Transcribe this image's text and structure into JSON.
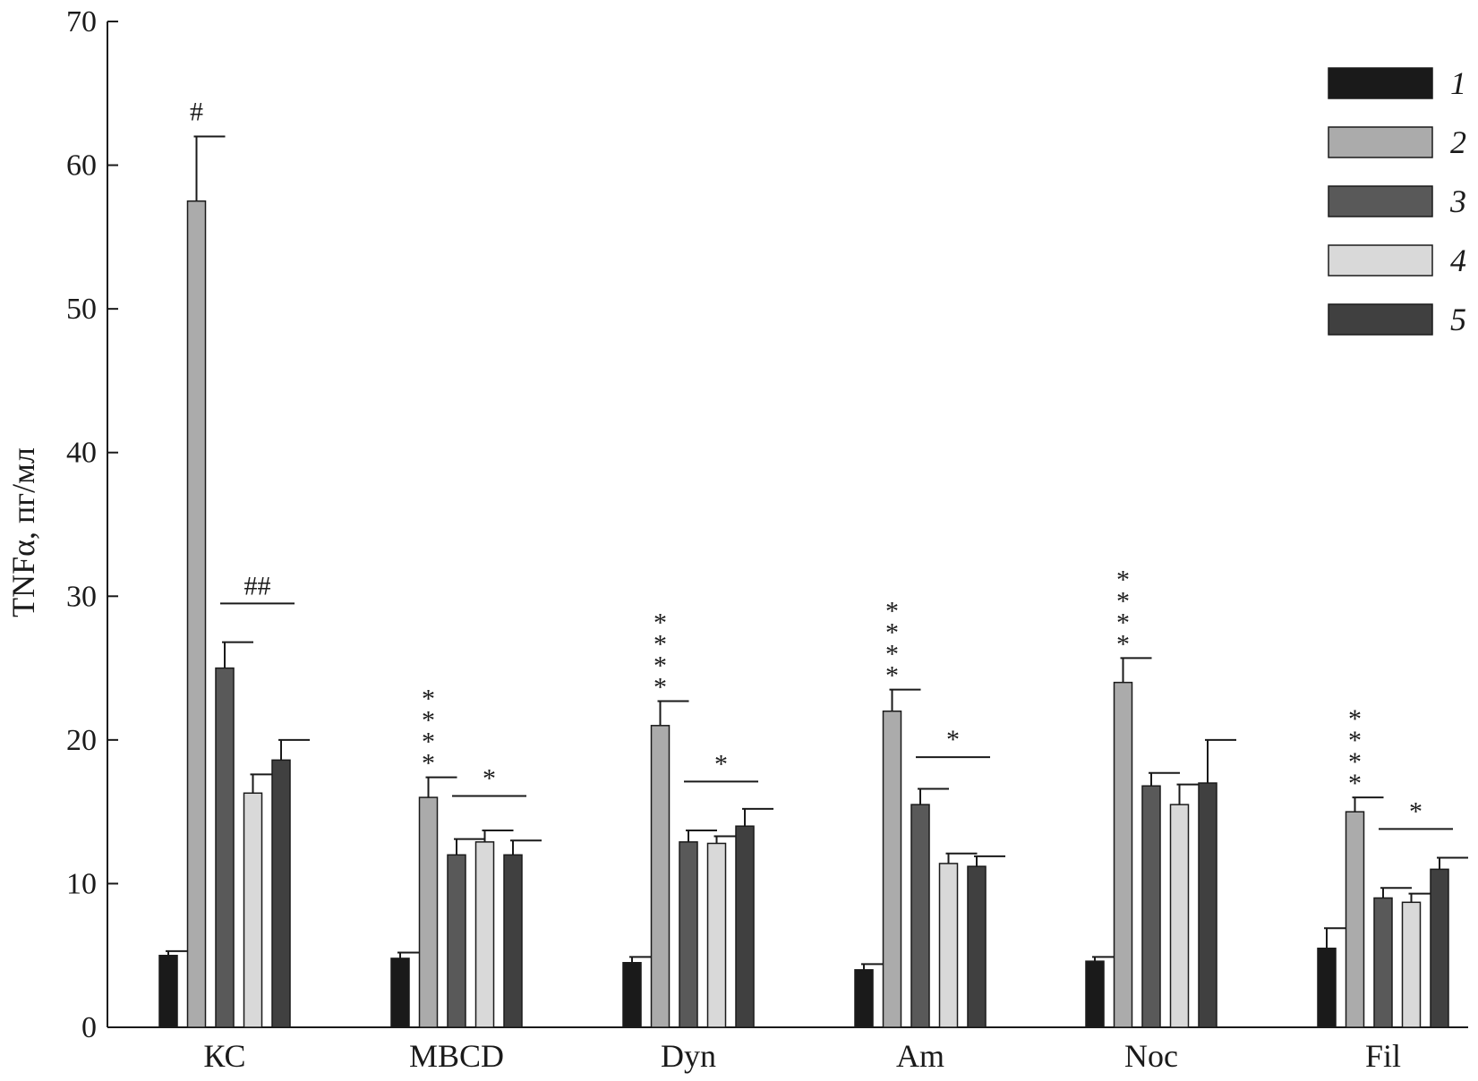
{
  "chart_data": {
    "type": "bar",
    "ylabel": "TNFα, пг/мл",
    "ylim": [
      0,
      70
    ],
    "yticks": [
      0,
      10,
      20,
      30,
      40,
      50,
      60,
      70
    ],
    "grid": false,
    "legend_position": "top-right",
    "categories": [
      "КС",
      "MBCD",
      "Dyn",
      "Am",
      "Noc",
      "Fil"
    ],
    "series": [
      {
        "name": "1",
        "color": "#1a1a1a",
        "values": [
          5.0,
          4.8,
          4.5,
          4.0,
          4.6,
          5.5
        ],
        "errors": [
          0.3,
          0.4,
          0.4,
          0.4,
          0.3,
          1.4
        ]
      },
      {
        "name": "2",
        "color": "#ababab",
        "values": [
          57.5,
          16.0,
          21.0,
          22.0,
          24.0,
          15.0
        ],
        "errors": [
          4.5,
          1.4,
          1.7,
          1.5,
          1.7,
          1.0
        ]
      },
      {
        "name": "3",
        "color": "#595959",
        "values": [
          25.0,
          12.0,
          12.9,
          15.5,
          16.8,
          9.0
        ],
        "errors": [
          1.8,
          1.1,
          0.8,
          1.1,
          0.9,
          0.7
        ]
      },
      {
        "name": "4",
        "color": "#d9d9d9",
        "values": [
          16.3,
          12.9,
          12.8,
          11.4,
          15.5,
          8.7
        ],
        "errors": [
          1.3,
          0.8,
          0.5,
          0.7,
          1.4,
          0.6
        ]
      },
      {
        "name": "5",
        "color": "#404040",
        "values": [
          18.6,
          12.0,
          14.0,
          11.2,
          17.0,
          11.0
        ],
        "errors": [
          1.4,
          1.0,
          1.2,
          0.7,
          3.0,
          0.8
        ]
      }
    ],
    "annotations": [
      {
        "category": 0,
        "above_series": 1,
        "text": "#",
        "vertical": false
      },
      {
        "category": 0,
        "span": [
          2,
          4
        ],
        "y": 29.5,
        "text": "##"
      },
      {
        "category": 1,
        "above_series": 1,
        "text": "****",
        "vertical": true
      },
      {
        "category": 1,
        "span": [
          2,
          4
        ],
        "y": 16.1,
        "text": "*"
      },
      {
        "category": 2,
        "above_series": 1,
        "text": "****",
        "vertical": true
      },
      {
        "category": 2,
        "span": [
          2,
          4
        ],
        "y": 17.1,
        "text": "*"
      },
      {
        "category": 3,
        "above_series": 1,
        "text": "****",
        "vertical": true
      },
      {
        "category": 3,
        "span": [
          2,
          4
        ],
        "y": 18.8,
        "text": "*"
      },
      {
        "category": 4,
        "above_series": 1,
        "text": "****",
        "vertical": true
      },
      {
        "category": 5,
        "above_series": 1,
        "text": "****",
        "vertical": true
      },
      {
        "category": 5,
        "span": [
          2,
          4
        ],
        "y": 13.8,
        "text": "*"
      }
    ]
  }
}
